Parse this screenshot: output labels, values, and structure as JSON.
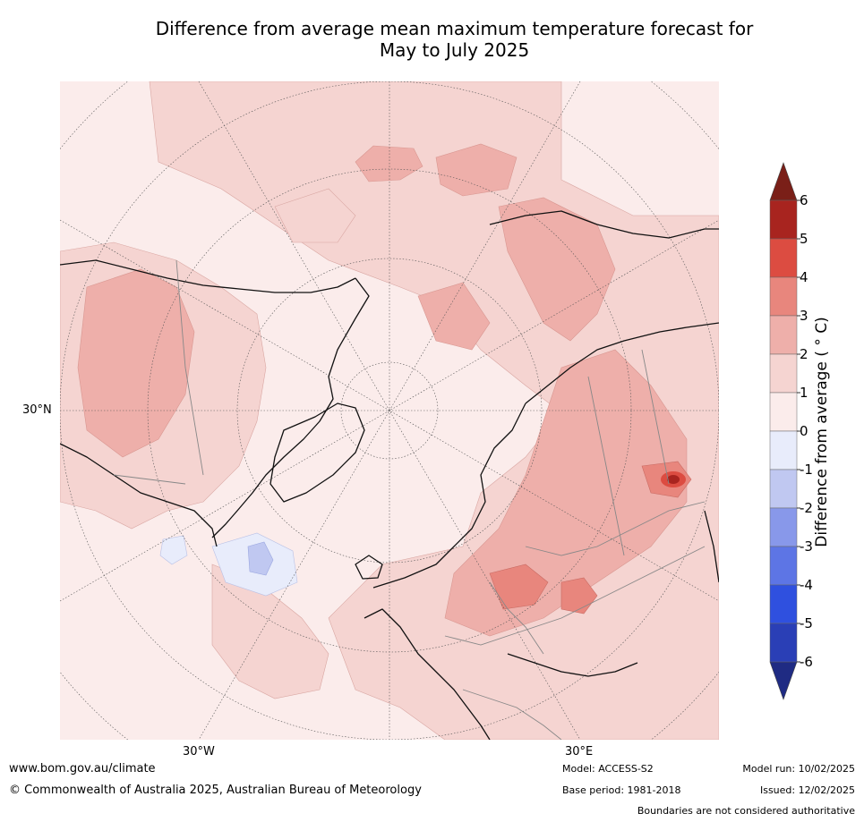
{
  "title_line1": "Difference from average mean maximum temperature forecast for",
  "title_line2": "May to July 2025",
  "map": {
    "projection": "north-polar-stereographic",
    "labels": {
      "lat30n": "30°N",
      "lon30w": "30°W",
      "lon30e": "30°E"
    }
  },
  "colorbar": {
    "label": "Difference from average ( ° C)",
    "ticks": [
      "6",
      "5",
      "4",
      "3",
      "2",
      "1",
      "0",
      "-1",
      "-2",
      "-3",
      "-4",
      "-5",
      "-6"
    ],
    "bins": [
      {
        "range": [
          5,
          6
        ],
        "color": "#a8241f"
      },
      {
        "range": [
          4,
          5
        ],
        "color": "#dc4c41"
      },
      {
        "range": [
          3,
          4
        ],
        "color": "#e8867d"
      },
      {
        "range": [
          2,
          3
        ],
        "color": "#eeafaa"
      },
      {
        "range": [
          1,
          2
        ],
        "color": "#f5d4d1"
      },
      {
        "range": [
          0,
          1
        ],
        "color": "#fbeceb"
      },
      {
        "range": [
          -1,
          0
        ],
        "color": "#e8ecfb"
      },
      {
        "range": [
          -2,
          -1
        ],
        "color": "#c0c8f1"
      },
      {
        "range": [
          -3,
          -2
        ],
        "color": "#8898ea"
      },
      {
        "range": [
          -4,
          -3
        ],
        "color": "#5d75e5"
      },
      {
        "range": [
          -5,
          -4
        ],
        "color": "#2f50df"
      },
      {
        "range": [
          -6,
          -5
        ],
        "color": "#2a3fb6"
      }
    ],
    "over_color": "#7a1f18",
    "under_color": "#1f2b83"
  },
  "footer": {
    "website": "www.bom.gov.au/climate",
    "copyright": "© Commonwealth of Australia 2025, Australian Bureau of Meteorology",
    "model": "Model: ACCESS-S2",
    "base_period": "Base period: 1981-2018",
    "model_run": "Model run: 10/02/2025",
    "issued": "Issued: 12/02/2025",
    "disclaimer": "Boundaries are not considered authoritative"
  }
}
